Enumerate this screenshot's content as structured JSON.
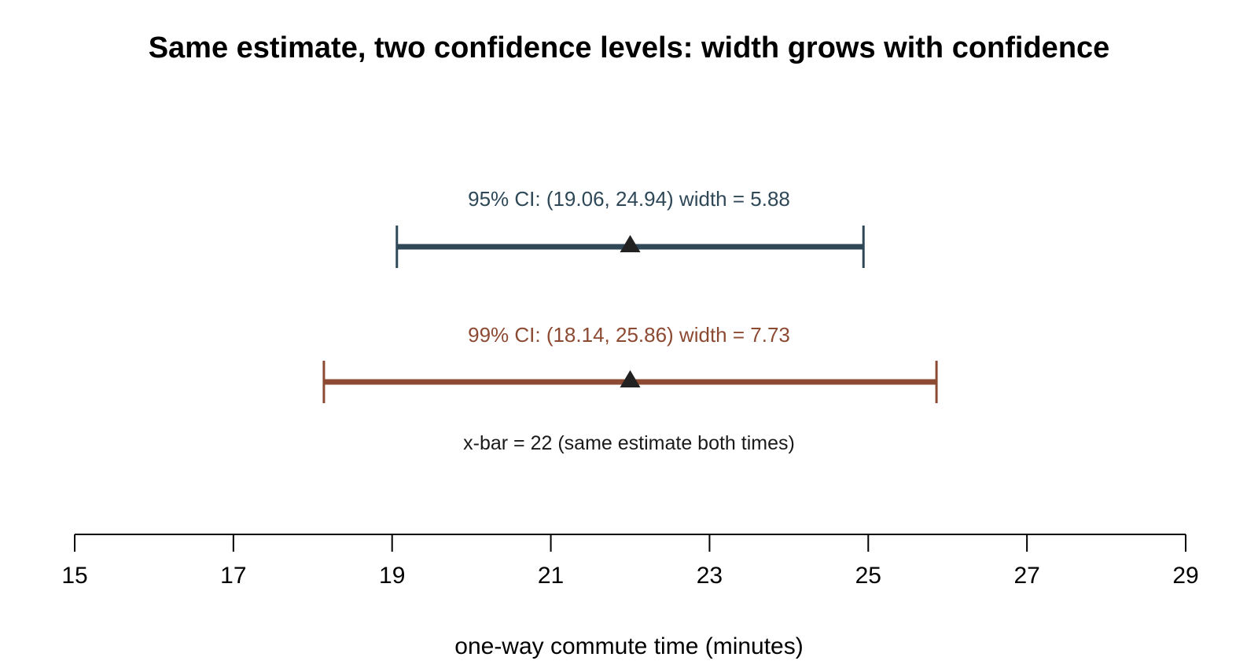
{
  "chart_data": {
    "type": "errorbar",
    "title": "Same estimate, two confidence levels: width grows with confidence",
    "xlabel": "one-way commute time (minutes)",
    "xlim": [
      15,
      29
    ],
    "x_ticks": [
      "15",
      "17",
      "19",
      "21",
      "23",
      "25",
      "27",
      "29"
    ],
    "grid": false,
    "estimate": 22,
    "estimate_note": "x-bar = 22 (same estimate both times)",
    "intervals": [
      {
        "level": "95%",
        "lower": 19.06,
        "upper": 24.94,
        "width": 5.88,
        "label": "95% CI: (19.06, 24.94)  width = 5.88",
        "color": "#2f4858"
      },
      {
        "level": "99%",
        "lower": 18.14,
        "upper": 25.86,
        "width": 7.73,
        "label": "99% CI: (18.14, 25.86)  width = 7.73",
        "color": "#8c4a32"
      }
    ],
    "point_color": "#222222"
  }
}
